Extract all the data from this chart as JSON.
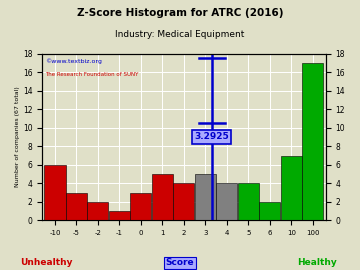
{
  "title": "Z-Score Histogram for ATRC (2016)",
  "subtitle": "Industry: Medical Equipment",
  "watermark1": "©www.textbiz.org",
  "watermark2": "The Research Foundation of SUNY",
  "xlabel_center": "Score",
  "xlabel_left": "Unhealthy",
  "xlabel_right": "Healthy",
  "ylabel": "Number of companies (67 total)",
  "zscore_label": "3.2925",
  "zscore_value": 3.2925,
  "bar_labels": [
    "-10",
    "-5",
    "-2",
    "-1",
    "0",
    "1",
    "2",
    "3",
    "4",
    "5",
    "6",
    "10",
    "100"
  ],
  "counts": [
    6,
    3,
    2,
    1,
    3,
    5,
    4,
    5,
    4,
    4,
    2,
    7,
    17
  ],
  "bar_colors": [
    "#cc0000",
    "#cc0000",
    "#cc0000",
    "#cc0000",
    "#cc0000",
    "#cc0000",
    "#cc0000",
    "#808080",
    "#808080",
    "#00aa00",
    "#00aa00",
    "#00aa00",
    "#00aa00"
  ],
  "ylim": [
    0,
    18
  ],
  "yticks": [
    0,
    2,
    4,
    6,
    8,
    10,
    12,
    14,
    16,
    18
  ],
  "background_color": "#e0e0c8",
  "grid_color": "#ffffff",
  "title_color": "#000000",
  "subtitle_color": "#000000",
  "watermark1_color": "#0000cc",
  "watermark2_color": "#cc0000",
  "unhealthy_color": "#cc0000",
  "healthy_color": "#00aa00",
  "score_color": "#0000cc",
  "zscore_line_color": "#0000cc",
  "zscore_box_facecolor": "#aaaaff",
  "zscore_box_edgecolor": "#0000cc"
}
